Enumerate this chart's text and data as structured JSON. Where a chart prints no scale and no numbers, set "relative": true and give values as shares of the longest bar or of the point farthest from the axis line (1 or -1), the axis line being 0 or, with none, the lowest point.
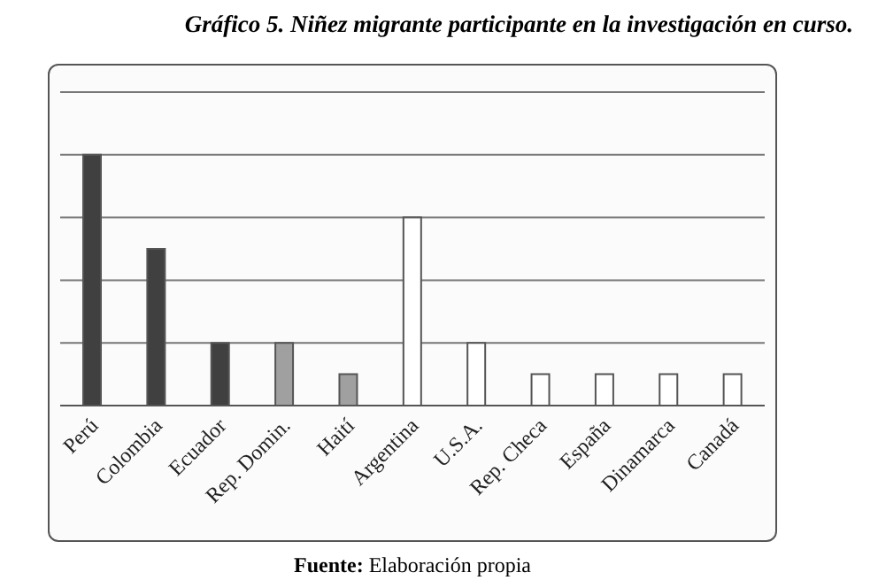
{
  "chart_data": {
    "type": "bar",
    "title": "Gráfico 5. Niñez migrante participante en la investigación en curso.",
    "categories": [
      "Perú",
      "Colombia",
      "Ecuador",
      "Rep. Domin.",
      "Haití",
      "Argentina",
      "U.S.A.",
      "Rep. Checa",
      "España",
      "Dinamarca",
      "Canadá"
    ],
    "values": [
      1,
      0.625,
      0.25,
      0.25,
      0.125,
      0.75,
      0.25,
      0.125,
      0.125,
      0.125,
      0.125
    ],
    "colors": [
      "#404040",
      "#404040",
      "#404040",
      "#a0a0a0",
      "#a0a0a0",
      "#ffffff",
      "#ffffff",
      "#ffffff",
      "#ffffff",
      "#ffffff",
      "#ffffff"
    ],
    "relative": true,
    "grid": "y",
    "annotations": [
      "Fuente: Elaboración propia"
    ]
  }
}
